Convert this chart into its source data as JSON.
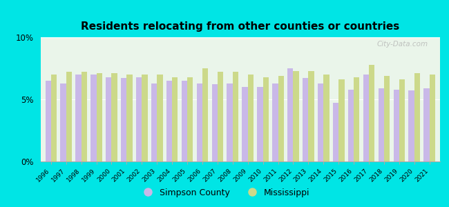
{
  "title": "Residents relocating from other counties or countries",
  "years": [
    1996,
    1997,
    1998,
    1999,
    2000,
    2001,
    2002,
    2003,
    2004,
    2005,
    2006,
    2007,
    2008,
    2009,
    2010,
    2011,
    2012,
    2013,
    2014,
    2015,
    2016,
    2017,
    2018,
    2019,
    2020,
    2021
  ],
  "simpson_county": [
    6.5,
    6.3,
    7.0,
    7.0,
    6.8,
    6.7,
    6.8,
    6.3,
    6.5,
    6.5,
    6.3,
    6.2,
    6.3,
    6.0,
    6.0,
    6.3,
    7.5,
    6.7,
    6.3,
    4.7,
    5.8,
    7.0,
    5.9,
    5.8,
    5.7,
    5.9
  ],
  "mississippi": [
    7.0,
    7.2,
    7.2,
    7.1,
    7.1,
    7.0,
    7.0,
    7.0,
    6.8,
    6.8,
    7.5,
    7.2,
    7.2,
    7.0,
    6.8,
    6.9,
    7.3,
    7.3,
    7.0,
    6.6,
    6.8,
    7.8,
    6.9,
    6.6,
    7.1,
    7.0
  ],
  "simpson_color": "#c9b8e8",
  "mississippi_color": "#ccd98a",
  "background_color": "#00e5e5",
  "plot_bg_color": "#eaf5ea",
  "ylim": [
    0,
    10
  ],
  "yticks": [
    0,
    5,
    10
  ],
  "ytick_labels": [
    "0%",
    "5%",
    "10%"
  ],
  "title_fontsize": 11,
  "bar_width": 0.38,
  "legend_labels": [
    "Simpson County",
    "Mississippi"
  ],
  "watermark": "City-Data.com"
}
